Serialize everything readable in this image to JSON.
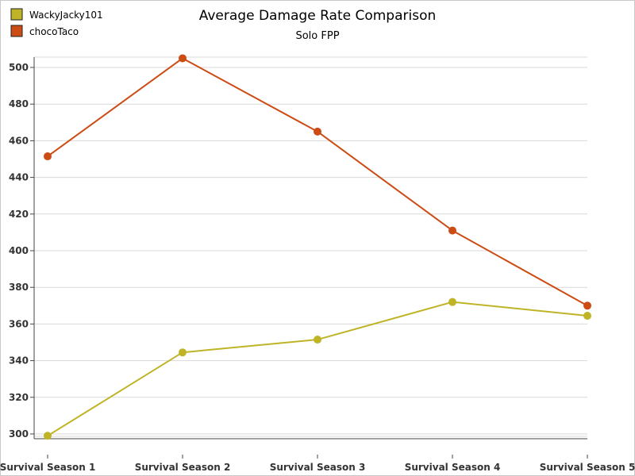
{
  "chart_data": {
    "type": "line",
    "title": "Average Damage Rate Comparison",
    "subtitle": "Solo FPP",
    "xlabel": "",
    "ylabel": "",
    "categories": [
      "Survival Season 1",
      "Survival Season 2",
      "Survival Season 3",
      "Survival Season 4",
      "Survival Season 5"
    ],
    "ylim": [
      295,
      505
    ],
    "yticks": [
      300,
      320,
      340,
      360,
      380,
      400,
      420,
      440,
      460,
      480,
      500
    ],
    "grid": true,
    "legend_position": "top-left",
    "series": [
      {
        "name": "WackyJacky101",
        "color": "#bfb426",
        "values": [
          299,
          344.5,
          351.5,
          372,
          364.5
        ]
      },
      {
        "name": "chocoTaco",
        "color": "#cc4c14",
        "values": [
          451.5,
          505,
          465,
          411,
          370
        ]
      }
    ]
  }
}
